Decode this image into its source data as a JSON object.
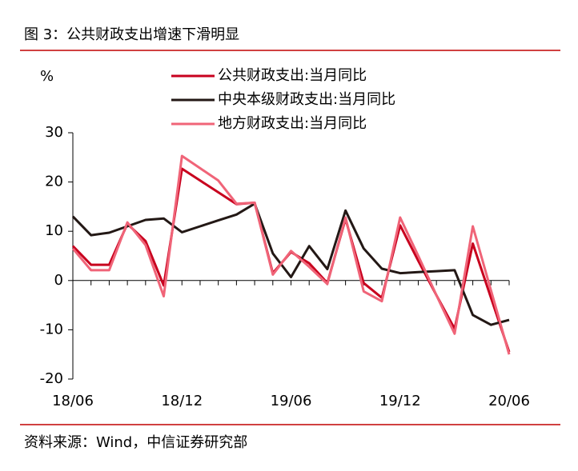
{
  "chart_data": {
    "type": "line",
    "title": "图 3：公共财政支出增速下滑明显",
    "source": "资料来源：Wind，中信证券研究部",
    "ylabel": "%",
    "categories": [
      "18/06",
      null,
      null,
      null,
      null,
      null,
      "18/12",
      null,
      null,
      null,
      null,
      null,
      "19/06",
      null,
      null,
      null,
      null,
      null,
      "19/12",
      null,
      null,
      null,
      null,
      null,
      "20/06"
    ],
    "series": [
      {
        "name": "公共财政支出:当月同比",
        "color": "#c8001e",
        "values": [
          7,
          3.2,
          3.2,
          11.5,
          8,
          -1,
          22.7,
          20.3,
          17.9,
          15.5,
          15.8,
          1.5,
          5.8,
          3.5,
          -0.5,
          12.5,
          -0.5,
          -3.5,
          11.2,
          4,
          -3,
          -9.8,
          7.5,
          -3.5,
          -14.5
        ]
      },
      {
        "name": "中央本级财政支出:当月同比",
        "color": "#231815",
        "values": [
          13,
          9.2,
          9.7,
          11,
          12.3,
          12.6,
          9.8,
          11,
          12.2,
          13.4,
          15.6,
          5.5,
          0.7,
          7,
          2.3,
          14.2,
          6.5,
          2.4,
          1.5,
          1.7,
          1.9,
          2.1,
          -7,
          -9,
          -8
        ]
      },
      {
        "name": "地方财政支出:当月同比",
        "color": "#f06478",
        "values": [
          6.5,
          2.1,
          2.1,
          11.8,
          7.2,
          -3.2,
          25.3,
          22.8,
          20.3,
          15.6,
          15.8,
          1.2,
          6,
          2.8,
          -0.7,
          12.8,
          -2.2,
          -4.2,
          12.8,
          5,
          -3,
          -10.8,
          11,
          -2,
          -15
        ]
      }
    ],
    "ylim": [
      -20,
      30
    ],
    "yticks": [
      -20,
      -10,
      0,
      10,
      20,
      30
    ],
    "grid": false,
    "legend": "top"
  }
}
